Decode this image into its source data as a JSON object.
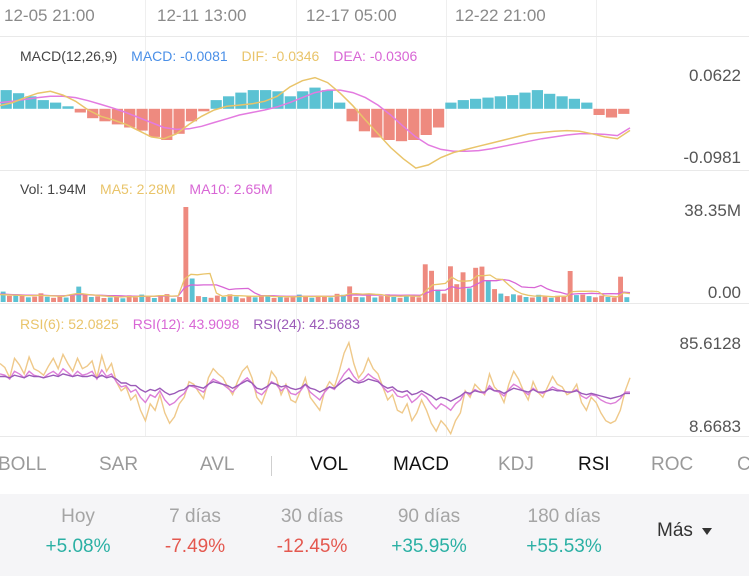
{
  "chart_data": {
    "type": "macd-volume-rsi",
    "time_axis": [
      "12-05 21:00",
      "12-11 13:00",
      "12-17 05:00",
      "12-22 21:00"
    ],
    "macd": {
      "params": "MACD(12,26,9)",
      "macd_label": "MACD: -0.0081",
      "dif_label": "DIF: -0.0346",
      "dea_label": "DEA: -0.0306",
      "ymax_label": "0.0622",
      "ymin_label": "-0.0981",
      "ylim": [
        -0.0981,
        0.0622
      ],
      "colors": {
        "macd": "#4a8fe7",
        "dif": "#e9c46a",
        "dea": "#e37be0",
        "positive": "#5bc2d3",
        "negative": "#ee8a7f"
      },
      "dif": [
        0.005,
        0.01,
        0.018,
        0.025,
        0.028,
        0.022,
        0.012,
        -0.002,
        -0.012,
        -0.018,
        -0.025,
        -0.035,
        -0.045,
        -0.048,
        -0.04,
        -0.025,
        -0.012,
        -0.002,
        0.004,
        0.006,
        0.008,
        0.012,
        0.02,
        0.035,
        0.045,
        0.05,
        0.042,
        0.025,
        0.005,
        -0.018,
        -0.04,
        -0.062,
        -0.08,
        -0.095,
        -0.09,
        -0.078,
        -0.07,
        -0.065,
        -0.06,
        -0.055,
        -0.05,
        -0.045,
        -0.04,
        -0.038,
        -0.036,
        -0.035,
        -0.036,
        -0.04,
        -0.045,
        -0.048,
        -0.0346
      ],
      "dea": [
        0.01,
        0.012,
        0.015,
        0.018,
        0.02,
        0.02,
        0.018,
        0.013,
        0.007,
        0.001,
        -0.006,
        -0.014,
        -0.022,
        -0.03,
        -0.033,
        -0.032,
        -0.028,
        -0.022,
        -0.016,
        -0.01,
        -0.006,
        -0.002,
        0.003,
        0.01,
        0.018,
        0.026,
        0.03,
        0.03,
        0.026,
        0.018,
        0.006,
        -0.01,
        -0.028,
        -0.045,
        -0.058,
        -0.065,
        -0.068,
        -0.068,
        -0.067,
        -0.064,
        -0.06,
        -0.056,
        -0.052,
        -0.048,
        -0.045,
        -0.042,
        -0.04,
        -0.04,
        -0.041,
        -0.043,
        -0.0306
      ],
      "hist": [
        0.03,
        0.025,
        0.02,
        0.014,
        0.01,
        0.004,
        -0.006,
        -0.015,
        -0.02,
        -0.025,
        -0.03,
        -0.035,
        -0.045,
        -0.05,
        -0.04,
        -0.02,
        -0.004,
        0.014,
        0.02,
        0.026,
        0.03,
        0.03,
        0.028,
        0.02,
        0.028,
        0.034,
        0.03,
        0.01,
        -0.02,
        -0.036,
        -0.046,
        -0.05,
        -0.052,
        -0.05,
        -0.042,
        -0.03,
        0.01,
        0.014,
        0.016,
        0.018,
        0.02,
        0.022,
        0.026,
        0.03,
        0.024,
        0.02,
        0.016,
        0.01,
        -0.01,
        -0.014,
        -0.0081
      ]
    },
    "volume": {
      "vol_label": "Vol: 1.94M",
      "ma5_label": "MA5: 2.28M",
      "ma10_label": "MA10: 2.65M",
      "ymax_label": "38.35M",
      "ymin_label": "0.00",
      "ylim": [
        0,
        38.35
      ],
      "colors": {
        "ma5": "#e9c46a",
        "ma10": "#d866d5",
        "up": "#5bc2d3",
        "down": "#ee8a7f"
      },
      "values": [
        4.2,
        2.5,
        3.1,
        2.8,
        1.9,
        2.2,
        3.5,
        2.1,
        1.7,
        2.4,
        1.8,
        2.6,
        6.2,
        2.9,
        2.0,
        2.3,
        1.6,
        1.8,
        2.2,
        1.5,
        2.7,
        1.9,
        3.0,
        2.4,
        1.6,
        2.8,
        3.2,
        1.4,
        2.0,
        38.35,
        9.5,
        2.4,
        2.0,
        1.7,
        2.6,
        2.0,
        3.1,
        2.2,
        1.5,
        2.3,
        1.9,
        2.8,
        2.4,
        1.6,
        2.2,
        1.8,
        2.0,
        3.0,
        2.4,
        1.7,
        2.6,
        2.1,
        1.8,
        3.3,
        2.9,
        6.3,
        2.0,
        1.9,
        2.6,
        1.8,
        2.4,
        3.1,
        2.0,
        1.7,
        2.8,
        2.2,
        1.9,
        15.2,
        12.6,
        5.0,
        3.4,
        14.4,
        7.2,
        12.0,
        5.5,
        13.8,
        14.3,
        8.8,
        5.2,
        3.4,
        2.4,
        3.1,
        2.7,
        2.0,
        1.8,
        2.9,
        2.2,
        1.7,
        2.5,
        2.1,
        12.5,
        2.8,
        3.0,
        2.4,
        1.9,
        2.6,
        2.0,
        1.8,
        10.2,
        1.94
      ],
      "up": [
        true,
        false,
        true,
        false,
        true,
        false,
        false,
        true,
        false,
        false,
        true,
        false,
        true,
        false,
        true,
        false,
        false,
        true,
        false,
        true,
        false,
        false,
        true,
        false,
        true,
        false,
        false,
        true,
        false,
        false,
        true,
        false,
        true,
        false,
        false,
        true,
        false,
        true,
        false,
        false,
        true,
        false,
        true,
        false,
        true,
        false,
        false,
        true,
        false,
        true,
        false,
        false,
        true,
        false,
        true,
        false,
        false,
        true,
        false,
        true,
        false,
        false,
        true,
        false,
        true,
        false,
        false,
        false,
        false,
        true,
        false,
        false,
        false,
        false,
        true,
        false,
        false,
        true,
        false,
        true,
        false,
        true,
        false,
        true,
        false,
        true,
        false,
        true,
        false,
        false,
        false,
        true,
        false,
        true,
        false,
        false,
        true,
        false,
        false,
        true
      ],
      "ma5": [
        3.0,
        2.9,
        2.8,
        2.7,
        2.6,
        2.6,
        2.7,
        2.6,
        2.5,
        2.4,
        2.3,
        2.9,
        3.4,
        3.3,
        3.0,
        2.8,
        2.5,
        2.3,
        2.2,
        2.0,
        2.2,
        2.1,
        2.3,
        2.4,
        2.3,
        2.6,
        2.6,
        2.4,
        2.5,
        9.3,
        11.2,
        11.0,
        11.3,
        11.5,
        3.6,
        2.3,
        2.7,
        2.6,
        2.5,
        2.4,
        2.3,
        2.4,
        2.5,
        2.2,
        2.2,
        2.2,
        2.1,
        2.2,
        2.3,
        2.2,
        2.3,
        2.3,
        2.2,
        2.5,
        2.6,
        3.3,
        3.4,
        3.2,
        3.3,
        3.1,
        3.0,
        2.4,
        2.4,
        2.3,
        2.5,
        2.4,
        2.3,
        4.7,
        6.9,
        7.2,
        7.5,
        10.0,
        8.5,
        8.4,
        8.6,
        10.6,
        10.6,
        10.9,
        9.3,
        9.1,
        6.8,
        4.6,
        3.3,
        2.7,
        2.4,
        2.5,
        2.3,
        2.1,
        2.4,
        2.3,
        4.2,
        4.3,
        4.3,
        4.4,
        4.2,
        2.5,
        2.3,
        2.1,
        3.7,
        3.4
      ],
      "ma10": [
        3.2,
        3.1,
        3.0,
        2.9,
        2.8,
        2.8,
        2.8,
        2.7,
        2.6,
        2.5,
        2.5,
        2.7,
        3.0,
        3.0,
        2.9,
        2.8,
        2.7,
        2.6,
        2.6,
        2.5,
        2.4,
        2.4,
        2.4,
        2.3,
        2.3,
        2.4,
        2.4,
        2.4,
        2.4,
        5.8,
        6.9,
        6.8,
        6.9,
        6.9,
        6.9,
        6.0,
        5.0,
        5.3,
        5.4,
        5.5,
        3.7,
        2.6,
        2.6,
        2.5,
        2.4,
        2.3,
        2.3,
        2.3,
        2.3,
        2.3,
        2.3,
        2.3,
        2.3,
        2.4,
        2.5,
        2.8,
        2.9,
        2.8,
        2.8,
        2.8,
        2.8,
        2.8,
        2.8,
        2.7,
        2.8,
        2.8,
        2.7,
        3.6,
        4.7,
        4.7,
        4.8,
        6.2,
        5.5,
        5.8,
        6.0,
        7.3,
        8.6,
        8.6,
        8.6,
        9.1,
        8.7,
        7.6,
        6.1,
        5.9,
        5.8,
        6.7,
        5.3,
        4.4,
        3.9,
        3.2,
        3.2,
        3.4,
        3.4,
        3.5,
        3.4,
        3.3,
        3.4,
        3.3,
        4.0,
        3.8
      ]
    },
    "rsi": {
      "rsi6_label": "RSI(6): 52.0825",
      "rsi12_label": "RSI(12): 43.9098",
      "rsi24_label": "RSI(24): 42.5683",
      "ymax_label": "85.6128",
      "ymin_label": "8.6683",
      "ylim": [
        8.6683,
        85.6128
      ],
      "colors": {
        "rsi6": "#efc98a",
        "rsi12": "#dc7fd8",
        "rsi24": "#9b5ab8"
      },
      "rsi6": [
        66,
        63,
        55,
        70,
        65,
        58,
        71,
        62,
        60,
        57,
        64,
        70,
        62,
        73,
        66,
        60,
        70,
        62,
        64,
        68,
        55,
        72,
        60,
        66,
        52,
        45,
        48,
        38,
        42,
        30,
        22,
        35,
        30,
        42,
        28,
        20,
        25,
        35,
        40,
        52,
        50,
        44,
        39,
        55,
        62,
        58,
        55,
        48,
        42,
        52,
        60,
        64,
        55,
        40,
        35,
        45,
        60,
        55,
        42,
        50,
        38,
        36,
        45,
        55,
        40,
        35,
        30,
        45,
        52,
        48,
        60,
        74,
        82,
        66,
        55,
        60,
        70,
        62,
        58,
        48,
        38,
        42,
        30,
        28,
        35,
        22,
        28,
        38,
        30,
        20,
        14,
        22,
        18,
        12,
        22,
        28,
        45,
        40,
        50,
        46,
        42,
        58,
        48,
        44,
        36,
        50,
        60,
        54,
        45,
        38,
        52,
        44,
        40,
        48,
        56,
        50,
        48,
        42,
        44,
        50,
        36,
        30,
        40,
        36,
        28,
        22,
        20,
        22,
        30,
        45,
        55
      ],
      "rsi12": [
        58,
        57,
        54,
        60,
        58,
        55,
        60,
        57,
        56,
        55,
        58,
        60,
        57,
        62,
        59,
        56,
        60,
        57,
        58,
        60,
        54,
        61,
        56,
        58,
        52,
        48,
        49,
        44,
        46,
        40,
        36,
        42,
        40,
        45,
        38,
        34,
        36,
        40,
        43,
        49,
        48,
        46,
        44,
        50,
        54,
        52,
        50,
        47,
        44,
        48,
        52,
        55,
        51,
        44,
        42,
        46,
        52,
        50,
        45,
        48,
        43,
        42,
        45,
        50,
        44,
        41,
        38,
        44,
        48,
        46,
        52,
        58,
        62,
        56,
        52,
        54,
        58,
        55,
        53,
        48,
        44,
        46,
        41,
        40,
        42,
        36,
        39,
        43,
        40,
        35,
        31,
        35,
        33,
        30,
        35,
        38,
        44,
        42,
        46,
        44,
        43,
        49,
        45,
        44,
        41,
        46,
        50,
        48,
        45,
        42,
        47,
        44,
        43,
        45,
        48,
        46,
        45,
        44,
        44,
        46,
        41,
        39,
        42,
        41,
        38,
        36,
        35,
        36,
        39,
        44,
        44
      ],
      "rsi24": [
        56,
        56,
        55,
        57,
        56,
        55,
        57,
        56,
        56,
        55,
        56,
        57,
        56,
        58,
        57,
        56,
        57,
        56,
        56,
        57,
        55,
        57,
        55,
        56,
        54,
        51,
        51,
        49,
        49,
        46,
        44,
        46,
        45,
        47,
        44,
        42,
        43,
        45,
        46,
        49,
        49,
        48,
        47,
        50,
        52,
        51,
        50,
        49,
        47,
        49,
        51,
        53,
        51,
        47,
        46,
        48,
        51,
        50,
        48,
        49,
        47,
        46,
        47,
        50,
        47,
        46,
        44,
        46,
        48,
        47,
        50,
        53,
        55,
        52,
        51,
        52,
        54,
        53,
        52,
        49,
        47,
        48,
        45,
        44,
        45,
        42,
        43,
        45,
        43,
        41,
        38,
        40,
        39,
        37,
        39,
        41,
        44,
        43,
        45,
        44,
        44,
        47,
        45,
        45,
        43,
        45,
        47,
        46,
        45,
        44,
        46,
        44,
        44,
        45,
        46,
        45,
        45,
        44,
        44,
        45,
        43,
        42,
        43,
        42,
        41,
        40,
        39,
        40,
        41,
        43,
        43
      ]
    }
  },
  "tabs": [
    "BOLL",
    "SAR",
    "AVL",
    "VOL",
    "MACD",
    "KDJ",
    "RSI",
    "ROC",
    "CCI"
  ],
  "active_tabs": [
    "VOL",
    "MACD",
    "RSI"
  ],
  "performance": [
    {
      "label": "Hoy",
      "value": "+5.08%",
      "color": "#2bb0a4"
    },
    {
      "label": "7 días",
      "value": "-7.49%",
      "color": "#e4584f"
    },
    {
      "label": "30 días",
      "value": "-12.45%",
      "color": "#e4584f"
    },
    {
      "label": "90 días",
      "value": "+35.95%",
      "color": "#2bb0a4"
    },
    {
      "label": "180 días",
      "value": "+55.53%",
      "color": "#2bb0a4"
    }
  ],
  "more_label": "Más",
  "more_icon": "caret-down-icon"
}
